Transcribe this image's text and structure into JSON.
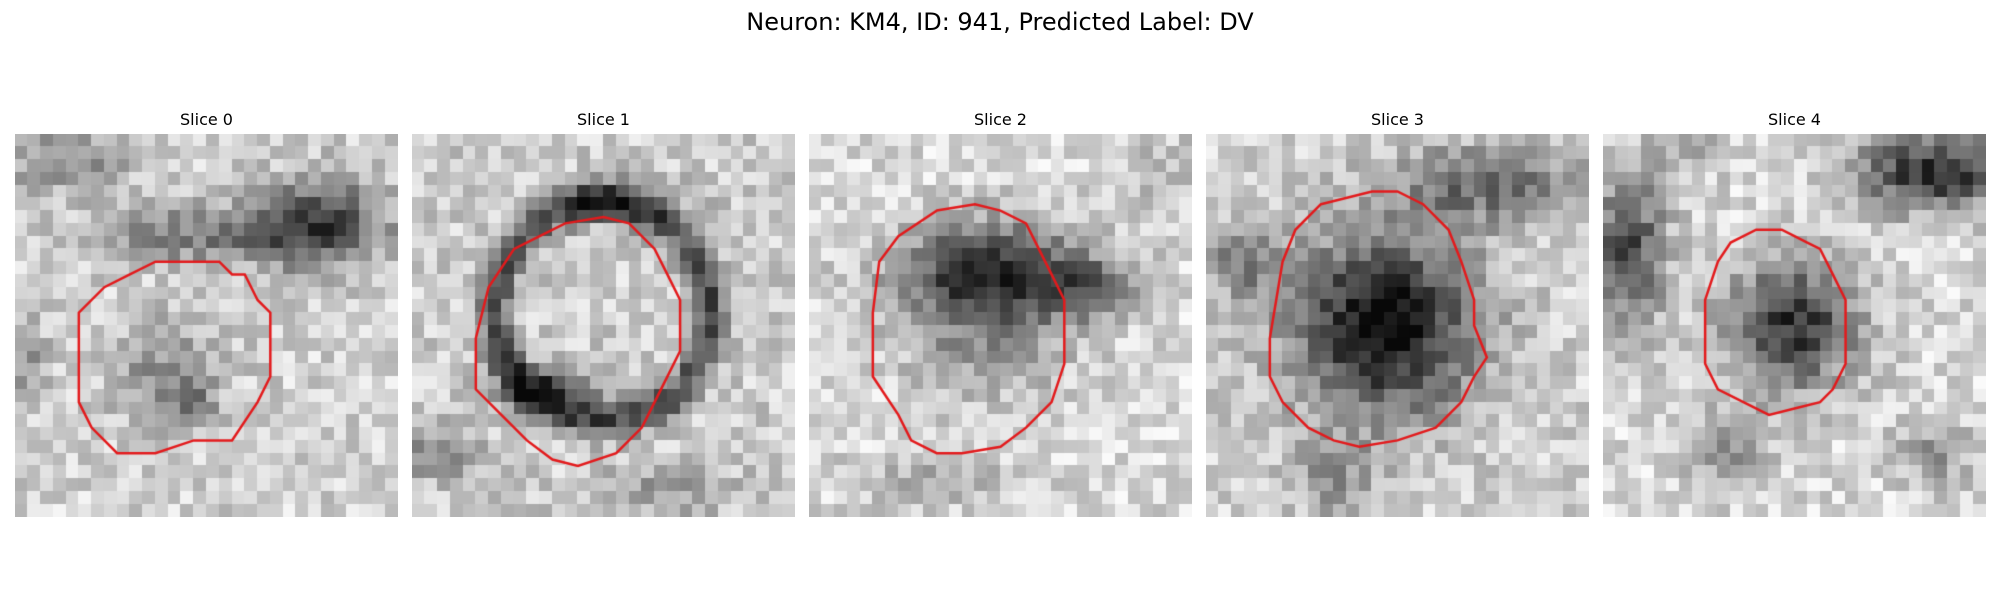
{
  "figure": {
    "title": "Neuron: KM4, ID: 941, Predicted Label: DV"
  },
  "panels": [
    {
      "title": "Slice 0"
    },
    {
      "title": "Slice 1"
    },
    {
      "title": "Slice 2"
    },
    {
      "title": "Slice 3"
    },
    {
      "title": "Slice 4"
    }
  ],
  "colors": {
    "contour": "#e31a1c",
    "background": "#ffffff"
  }
}
